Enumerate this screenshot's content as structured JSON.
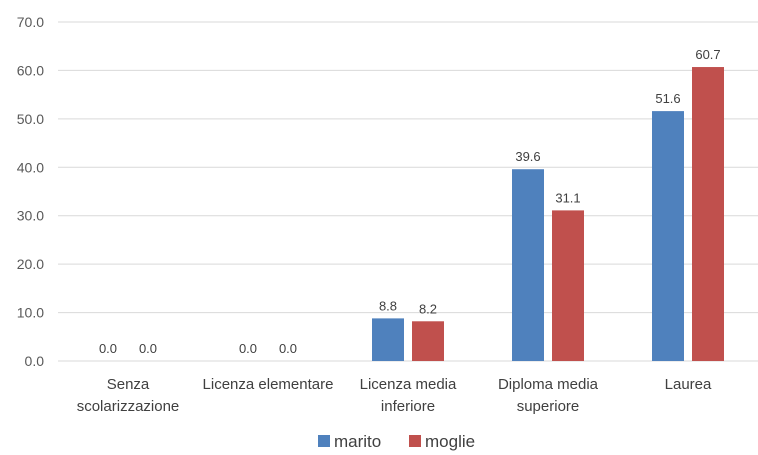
{
  "chart_data": {
    "type": "bar",
    "categories": [
      [
        "Senza",
        "scolarizzazione"
      ],
      [
        "Licenza elementare"
      ],
      [
        "Licenza media",
        "inferiore"
      ],
      [
        "Diploma media",
        "superiore"
      ],
      [
        "Laurea"
      ]
    ],
    "series": [
      {
        "name": "marito",
        "color": "#4f81bd",
        "values": [
          0.0,
          0.0,
          8.8,
          39.6,
          51.6
        ]
      },
      {
        "name": "moglie",
        "color": "#c0504d",
        "values": [
          0.0,
          0.0,
          8.2,
          31.1,
          60.7
        ]
      }
    ],
    "ylim": [
      0,
      70
    ],
    "yticks": [
      "0.0",
      "10.0",
      "20.0",
      "30.0",
      "40.0",
      "50.0",
      "60.0",
      "70.0"
    ],
    "grid": true,
    "legend_position": "bottom",
    "value_decimals": 1
  }
}
